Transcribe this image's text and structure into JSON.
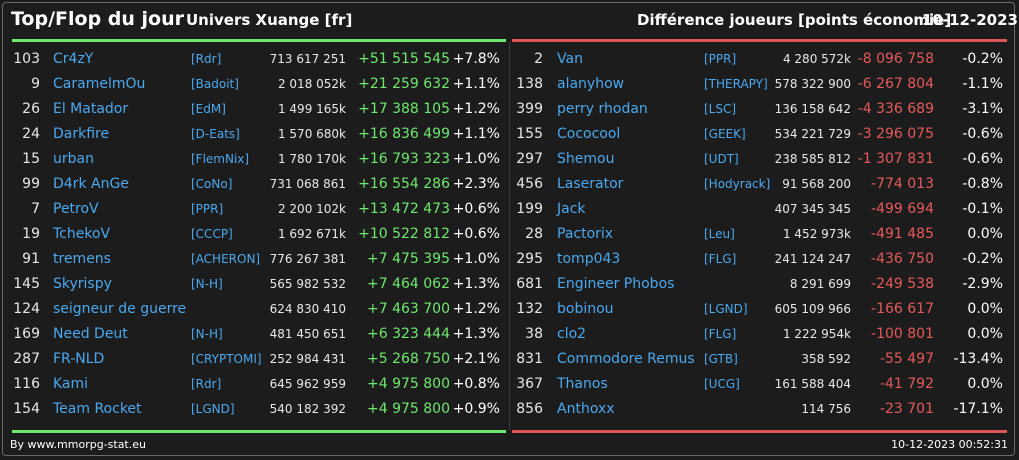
{
  "header": {
    "title": "Top/Flop du jour",
    "universe": "Univers Xuange [fr]",
    "metric": "Différence joueurs [points économie]",
    "date": "10-12-2023"
  },
  "colors": {
    "top": "#6ee86e",
    "flop": "#e05555",
    "link": "#4aa8ef"
  },
  "top": [
    {
      "rank": "103",
      "name": "Cr4zY",
      "tag": "[Rdr]",
      "points": "713 617 251",
      "diff": "+51 515 545",
      "pct": "+7.8%"
    },
    {
      "rank": "9",
      "name": "CaramelmOu",
      "tag": "[Badoit]",
      "points": "2 018 052k",
      "diff": "+21 259 632",
      "pct": "+1.1%"
    },
    {
      "rank": "26",
      "name": "El Matador",
      "tag": "[EdM]",
      "points": "1 499 165k",
      "diff": "+17 388 105",
      "pct": "+1.2%"
    },
    {
      "rank": "24",
      "name": "Darkfire",
      "tag": "[D-Eats]",
      "points": "1 570 680k",
      "diff": "+16 836 499",
      "pct": "+1.1%"
    },
    {
      "rank": "15",
      "name": "urban",
      "tag": "[FlemNix]",
      "points": "1 780 170k",
      "diff": "+16 793 323",
      "pct": "+1.0%"
    },
    {
      "rank": "99",
      "name": "D4rk AnGe",
      "tag": "[CoNo]",
      "points": "731 068 861",
      "diff": "+16 554 286",
      "pct": "+2.3%"
    },
    {
      "rank": "7",
      "name": "PetroV",
      "tag": "[PPR]",
      "points": "2 200 102k",
      "diff": "+13 472 473",
      "pct": "+0.6%"
    },
    {
      "rank": "19",
      "name": "TchekoV",
      "tag": "[CCCP]",
      "points": "1 692 671k",
      "diff": "+10 522 812",
      "pct": "+0.6%"
    },
    {
      "rank": "91",
      "name": "tremens",
      "tag": "[ACHERON]",
      "points": "776 267 381",
      "diff": "+7 475 395",
      "pct": "+1.0%"
    },
    {
      "rank": "145",
      "name": "Skyrispy",
      "tag": "[N-H]",
      "points": "565 982 532",
      "diff": "+7 464 062",
      "pct": "+1.3%"
    },
    {
      "rank": "124",
      "name": "seigneur de guerre",
      "tag": "",
      "points": "624 830 410",
      "diff": "+7 463 700",
      "pct": "+1.2%"
    },
    {
      "rank": "169",
      "name": "Need Deut",
      "tag": "[N-H]",
      "points": "481 450 651",
      "diff": "+6 323 444",
      "pct": "+1.3%"
    },
    {
      "rank": "287",
      "name": "FR-NLD",
      "tag": "[CRYPTOMI]",
      "points": "252 984 431",
      "diff": "+5 268 750",
      "pct": "+2.1%"
    },
    {
      "rank": "116",
      "name": "Kami",
      "tag": "[Rdr]",
      "points": "645 962 959",
      "diff": "+4 975 800",
      "pct": "+0.8%"
    },
    {
      "rank": "154",
      "name": "Team Rocket",
      "tag": "[LGND]",
      "points": "540 182 392",
      "diff": "+4 975 800",
      "pct": "+0.9%"
    }
  ],
  "flop": [
    {
      "rank": "2",
      "name": "Van",
      "tag": "[PPR]",
      "points": "4 280 572k",
      "diff": "-8 096 758",
      "pct": "-0.2%"
    },
    {
      "rank": "138",
      "name": "alanyhow",
      "tag": "[THERAPY]",
      "points": "578 322 900",
      "diff": "-6 267 804",
      "pct": "-1.1%"
    },
    {
      "rank": "399",
      "name": "perry rhodan",
      "tag": "[LSC]",
      "points": "136 158 642",
      "diff": "-4 336 689",
      "pct": "-3.1%"
    },
    {
      "rank": "155",
      "name": "Cococool",
      "tag": "[GEEK]",
      "points": "534 221 729",
      "diff": "-3 296 075",
      "pct": "-0.6%"
    },
    {
      "rank": "297",
      "name": "Shemou",
      "tag": "[UDT]",
      "points": "238 585 812",
      "diff": "-1 307 831",
      "pct": "-0.6%"
    },
    {
      "rank": "456",
      "name": "Laserator",
      "tag": "[Hodyrack]",
      "points": "91 568 200",
      "diff": "-774 013",
      "pct": "-0.8%"
    },
    {
      "rank": "199",
      "name": "Jack",
      "tag": "",
      "points": "407 345 345",
      "diff": "-499 694",
      "pct": "-0.1%"
    },
    {
      "rank": "28",
      "name": "Pactorix",
      "tag": "[Leu]",
      "points": "1 452 973k",
      "diff": "-491 485",
      "pct": "0.0%"
    },
    {
      "rank": "295",
      "name": "tomp043",
      "tag": "[FLG]",
      "points": "241 124 247",
      "diff": "-436 750",
      "pct": "-0.2%"
    },
    {
      "rank": "681",
      "name": "Engineer Phobos",
      "tag": "",
      "points": "8 291 699",
      "diff": "-249 538",
      "pct": "-2.9%"
    },
    {
      "rank": "132",
      "name": "bobinou",
      "tag": "[LGND]",
      "points": "605 109 966",
      "diff": "-166 617",
      "pct": "0.0%"
    },
    {
      "rank": "38",
      "name": "clo2",
      "tag": "[FLG]",
      "points": "1 222 954k",
      "diff": "-100 801",
      "pct": "0.0%"
    },
    {
      "rank": "831",
      "name": "Commodore Remus",
      "tag": "[GTB]",
      "points": "358 592",
      "diff": "-55 497",
      "pct": "-13.4%"
    },
    {
      "rank": "367",
      "name": "Thanos",
      "tag": "[UCG]",
      "points": "161 588 404",
      "diff": "-41 792",
      "pct": "0.0%"
    },
    {
      "rank": "856",
      "name": "Anthoxx",
      "tag": "",
      "points": "114 756",
      "diff": "-23 701",
      "pct": "-17.1%"
    }
  ],
  "footer": {
    "credit": "By www.mmorpg-stat.eu",
    "timestamp": "10-12-2023 00:52:31"
  }
}
